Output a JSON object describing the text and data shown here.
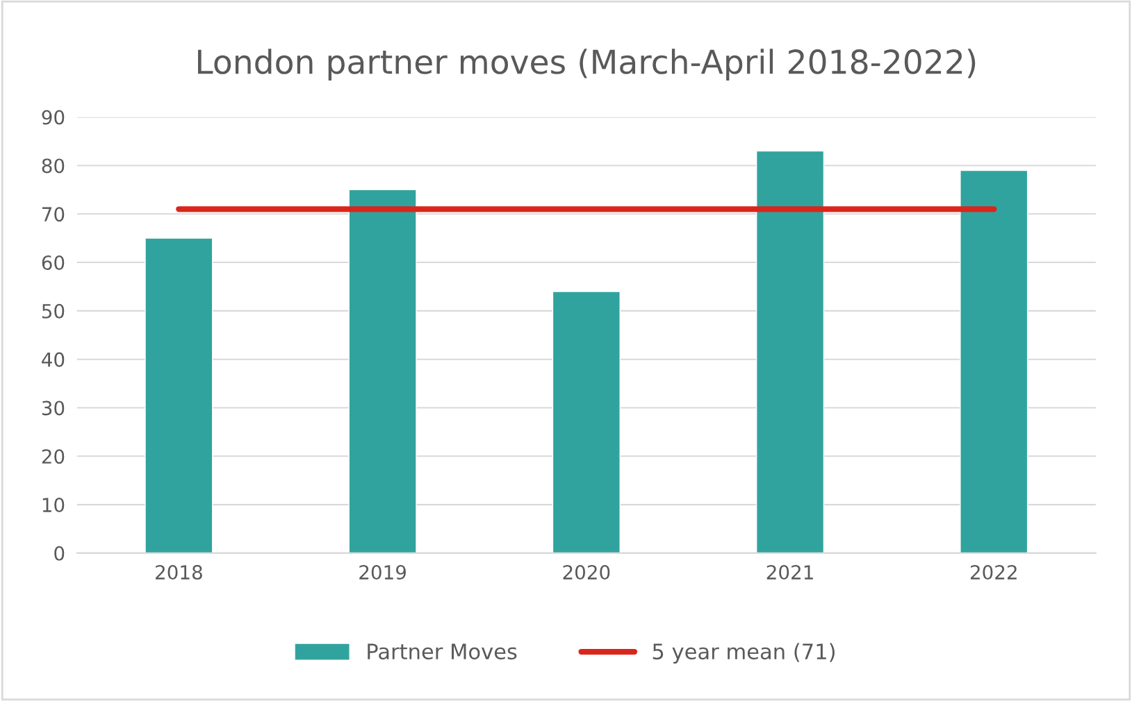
{
  "chart_data": {
    "type": "bar",
    "title": "London partner moves (March-April 2018-2022)",
    "categories": [
      "2018",
      "2019",
      "2020",
      "2021",
      "2022"
    ],
    "series": [
      {
        "name": "Partner Moves",
        "color": "#31a39e",
        "values": [
          65,
          75,
          54,
          83,
          79
        ]
      },
      {
        "name": "5 year mean (71)",
        "type": "line",
        "color": "#d9261c",
        "values": [
          71,
          71,
          71,
          71,
          71
        ]
      }
    ],
    "ylim": [
      0,
      90
    ],
    "yticks": [
      0,
      10,
      20,
      30,
      40,
      50,
      60,
      70,
      80,
      90
    ],
    "grid": "y",
    "legend": "bottom"
  }
}
